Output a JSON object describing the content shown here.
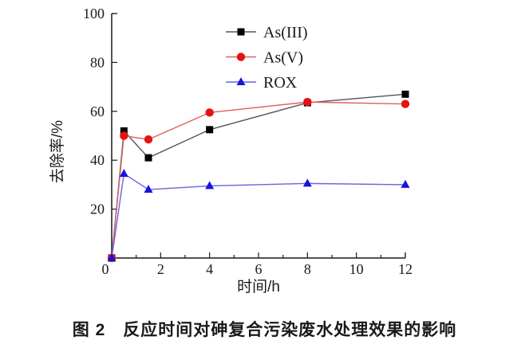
{
  "figure": {
    "caption": "图 2　反应时间对砷复合污染废水处理效果的影响"
  },
  "chart_data": {
    "type": "line",
    "title": "",
    "xlabel": "时间/h",
    "ylabel": "去除率/%",
    "xlim": [
      0,
      12
    ],
    "ylim": [
      0,
      100
    ],
    "x_major_ticks": [
      0,
      2,
      4,
      6,
      8,
      10,
      12
    ],
    "x_minor_ticks": [
      1,
      3,
      5,
      7,
      9,
      11
    ],
    "y_major_ticks": [
      20,
      40,
      60,
      80,
      100
    ],
    "grid": false,
    "legend_position": "upper-center",
    "x": [
      0,
      0.5,
      1.5,
      4,
      8,
      12
    ],
    "series": [
      {
        "name": "As(III)",
        "marker": "square",
        "marker_color": "#000000",
        "line_color": "#555555",
        "values": [
          0,
          52,
          41,
          52.5,
          63.5,
          67
        ]
      },
      {
        "name": "As(V)",
        "marker": "circle",
        "marker_color": "#e81111",
        "line_color": "#e06060",
        "values": [
          0,
          50,
          48.5,
          59.5,
          63.8,
          63
        ]
      },
      {
        "name": "ROX",
        "marker": "triangle",
        "marker_color": "#1414dd",
        "line_color": "#6464e0",
        "values": [
          0,
          34.5,
          28,
          29.5,
          30.5,
          30
        ]
      }
    ],
    "axis_color": "#1a1a1a",
    "tick_label_color": "#1a1a1a"
  }
}
